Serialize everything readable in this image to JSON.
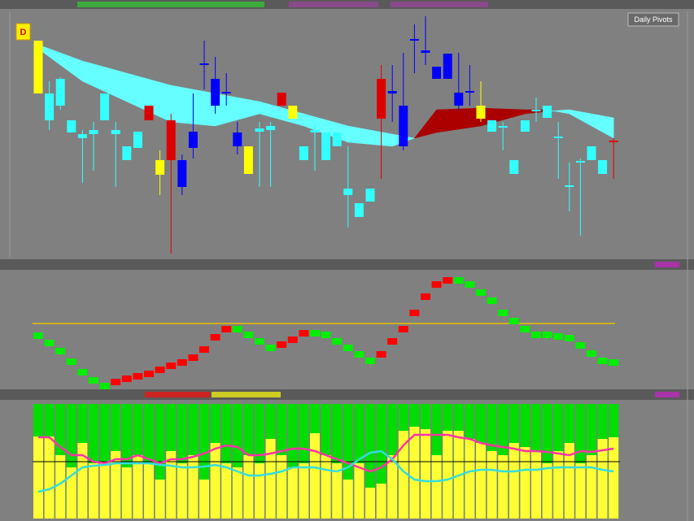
{
  "window": {
    "badge": "D",
    "button": "Daily Pivots"
  },
  "price_panel": {
    "ylim": [
      0,
      300
    ],
    "open": [
      201,
      168,
      186,
      153,
      146,
      151,
      168,
      151,
      119,
      134,
      168,
      101,
      119,
      86,
      134,
      236,
      186,
      201,
      136,
      102,
      154,
      156,
      186,
      170,
      119,
      153,
      119,
      136,
      76,
      49,
      68,
      170,
      201,
      136,
      266,
      251,
      219,
      219,
      186,
      202,
      170,
      154,
      159,
      102,
      154,
      179,
      171,
      146,
      86,
      116,
      119,
      102,
      141
    ],
    "high": [
      266,
      216,
      221,
      168,
      156,
      166,
      201,
      166,
      136,
      154,
      186,
      131,
      176,
      126,
      201,
      266,
      246,
      226,
      166,
      136,
      166,
      166,
      202,
      186,
      136,
      166,
      153,
      153,
      136,
      66,
      84,
      236,
      236,
      251,
      286,
      296,
      234,
      250,
      251,
      236,
      216,
      168,
      166,
      119,
      168,
      196,
      186,
      166,
      116,
      121,
      136,
      119,
      146
    ],
    "low": [
      201,
      156,
      181,
      153,
      91,
      106,
      168,
      86,
      119,
      134,
      168,
      76,
      4,
      76,
      121,
      206,
      176,
      186,
      126,
      102,
      86,
      86,
      186,
      170,
      119,
      106,
      119,
      136,
      36,
      49,
      68,
      96,
      166,
      131,
      226,
      236,
      219,
      219,
      181,
      186,
      166,
      154,
      131,
      102,
      154,
      166,
      171,
      96,
      56,
      26,
      119,
      102,
      96
    ],
    "close": [
      266,
      201,
      219,
      168,
      151,
      156,
      201,
      156,
      136,
      154,
      186,
      119,
      168,
      119,
      154,
      238,
      219,
      203,
      153,
      136,
      158,
      161,
      202,
      186,
      136,
      156,
      153,
      153,
      84,
      66,
      84,
      219,
      204,
      186,
      268,
      254,
      234,
      250,
      202,
      204,
      186,
      168,
      161,
      119,
      168,
      181,
      186,
      148,
      88,
      118,
      136,
      119,
      143
    ],
    "colors": [
      "#ffff00",
      "#33ffff",
      "#33ffff",
      "#33ffff",
      "#33ffff",
      "#33ffff",
      "#33ffff",
      "#33ffff",
      "#33ffff",
      "#33ffff",
      "#dd0000",
      "#ffff00",
      "#dd0000",
      "#0000ff",
      "#0000ff",
      "#0000ff",
      "#0000ff",
      "#0000ff",
      "#0000ff",
      "#ffff00",
      "#33ffff",
      "#33ffff",
      "#dd0000",
      "#ffff00",
      "#33ffff",
      "#33ffff",
      "#33ffff",
      "#33ffff",
      "#33ffff",
      "#33ffff",
      "#33ffff",
      "#dd0000",
      "#0000ff",
      "#0000ff",
      "#0000ff",
      "#0000ff",
      "#0000ff",
      "#0000ff",
      "#0000ff",
      "#0000ff",
      "#ffff00",
      "#33ffff",
      "#33ffff",
      "#33ffff",
      "#33ffff",
      "#33ffff",
      "#33ffff",
      "#33ffff",
      "#33ffff",
      "#33ffff",
      "#33ffff",
      "#33ffff",
      "#dd0000"
    ],
    "cloud": {
      "x": [
        0,
        4,
        8,
        12,
        16,
        20,
        24,
        28,
        32,
        34,
        36,
        40,
        44,
        46,
        48,
        52
      ],
      "span_a": [
        261,
        241,
        226,
        211,
        201,
        191,
        176,
        161,
        151,
        146,
        153,
        161,
        176,
        179,
        181,
        171
      ],
      "span_b": [
        256,
        216,
        191,
        166,
        161,
        176,
        161,
        141,
        136,
        146,
        181,
        183,
        181,
        181,
        176,
        146
      ],
      "bull_color": "#66ffff",
      "bear_color": "#aa0000"
    }
  },
  "oscillator_panel": {
    "ylim": [
      0,
      143
    ],
    "level": 80,
    "level_color": "#e6c200",
    "up_color": "#ff0000",
    "down_color": "#00ee00",
    "values": [
      65,
      56,
      46,
      33,
      20,
      10,
      3,
      8,
      12,
      15,
      18,
      23,
      28,
      32,
      38,
      48,
      63,
      73,
      73,
      66,
      58,
      50,
      54,
      60,
      68,
      68,
      66,
      58,
      50,
      42,
      34,
      42,
      58,
      73,
      93,
      113,
      128,
      133,
      133,
      128,
      118,
      108,
      93,
      83,
      73,
      66,
      66,
      64,
      62,
      53,
      43,
      34,
      32
    ]
  },
  "volume_panel": {
    "ylim": [
      0,
      141
    ],
    "midline": 70,
    "bar_color": "#ffff33",
    "back_color": "#00dd00",
    "values": [
      101,
      101,
      78,
      63,
      93,
      68,
      70,
      83,
      63,
      78,
      68,
      48,
      83,
      68,
      78,
      48,
      93,
      68,
      63,
      78,
      68,
      98,
      78,
      63,
      68,
      105,
      78,
      68,
      48,
      68,
      38,
      43,
      78,
      108,
      113,
      110,
      78,
      108,
      108,
      98,
      93,
      83,
      78,
      93,
      88,
      83,
      68,
      83,
      93,
      68,
      78,
      98,
      100
    ],
    "lines": [
      {
        "color": "#ff33aa",
        "values": [
          100,
          100,
          88,
          78,
          78,
          70,
          68,
          73,
          73,
          78,
          73,
          68,
          73,
          73,
          76,
          80,
          86,
          90,
          88,
          78,
          78,
          80,
          83,
          86,
          86,
          83,
          78,
          73,
          68,
          63,
          58,
          63,
          73,
          90,
          103,
          103,
          103,
          103,
          100,
          98,
          93,
          90,
          88,
          86,
          83,
          83,
          82,
          80,
          78,
          83,
          82,
          84,
          86
        ]
      },
      {
        "color": "#33dddd",
        "values": [
          33,
          36,
          43,
          53,
          63,
          65,
          66,
          68,
          68,
          68,
          68,
          66,
          65,
          63,
          63,
          64,
          66,
          63,
          58,
          53,
          53,
          55,
          58,
          63,
          63,
          63,
          60,
          58,
          63,
          73,
          81,
          83,
          73,
          58,
          48,
          46,
          46,
          48,
          53,
          58,
          60,
          60,
          58,
          58,
          60,
          60,
          62,
          63,
          63,
          63,
          63,
          60,
          58
        ]
      }
    ]
  }
}
